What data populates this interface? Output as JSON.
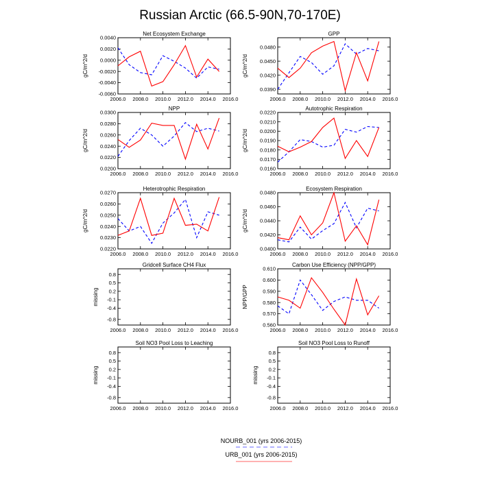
{
  "figure": {
    "title": "Russian Arctic (66.5-90N,70-170E)",
    "legend": [
      {
        "name": "NOURB_001 (yrs 2006-2015)",
        "color": "#0000ff",
        "dash": "dashed"
      },
      {
        "name": "URB_001 (yrs 2006-2015)",
        "color": "#ff0000",
        "dash": "solid"
      }
    ]
  },
  "chart_data": [
    {
      "type": "line",
      "title": "Net Ecosystem Exchange",
      "ylabel": "gC/m^2/d",
      "xlim": [
        2006,
        2016
      ],
      "ylim": [
        -0.006,
        0.004
      ],
      "xticks": [
        "2006.0",
        "2008.0",
        "2010.0",
        "2012.0",
        "2014.0",
        "2016.0"
      ],
      "yticks": [
        "-0.0060",
        "-0.0040",
        "-0.0020",
        "0.0000",
        "0.0020",
        "0.0040"
      ],
      "x": [
        2006,
        2007,
        2008,
        2009,
        2010,
        2011,
        2012,
        2013,
        2014,
        2015
      ],
      "series": [
        {
          "name": "NOURB_001",
          "values": [
            0.0022,
            -0.0008,
            -0.0022,
            -0.0026,
            0.0008,
            -0.0002,
            -0.0014,
            -0.0032,
            -0.0012,
            -0.0016
          ]
        },
        {
          "name": "URB_001",
          "values": [
            -0.001,
            0.0006,
            0.0016,
            -0.0046,
            -0.0038,
            -0.0008,
            0.0026,
            -0.003,
            0.0002,
            -0.002
          ]
        }
      ]
    },
    {
      "type": "line",
      "title": "GPP",
      "ylabel": "gC/m^2/d",
      "xlim": [
        2006,
        2016
      ],
      "ylim": [
        0.038,
        0.05
      ],
      "xticks": [
        "2006.0",
        "2008.0",
        "2010.0",
        "2012.0",
        "2014.0",
        "2016.0"
      ],
      "yticks": [
        "0.0390",
        "0.0420",
        "0.0450",
        "0.0480"
      ],
      "x": [
        2006,
        2007,
        2008,
        2009,
        2010,
        2011,
        2012,
        2013,
        2014,
        2015
      ],
      "series": [
        {
          "name": "NOURB_001",
          "values": [
            0.039,
            0.0425,
            0.046,
            0.0447,
            0.0422,
            0.044,
            0.0487,
            0.0465,
            0.0477,
            0.0472
          ]
        },
        {
          "name": "URB_001",
          "values": [
            0.0435,
            0.0415,
            0.0435,
            0.0468,
            0.0482,
            0.0492,
            0.0387,
            0.0468,
            0.0408,
            0.0492
          ]
        }
      ]
    },
    {
      "type": "line",
      "title": "NPP",
      "ylabel": "gC/m^2/d",
      "xlim": [
        2006,
        2016
      ],
      "ylim": [
        0.02,
        0.03
      ],
      "xticks": [
        "2006.0",
        "2008.0",
        "2010.0",
        "2012.0",
        "2014.0",
        "2016.0"
      ],
      "yticks": [
        "0.0200",
        "0.0220",
        "0.0240",
        "0.0260",
        "0.0280",
        "0.0300"
      ],
      "x": [
        2006,
        2007,
        2008,
        2009,
        2010,
        2011,
        2012,
        2013,
        2014,
        2015
      ],
      "series": [
        {
          "name": "NOURB_001",
          "values": [
            0.0222,
            0.025,
            0.0272,
            0.026,
            0.024,
            0.0258,
            0.0282,
            0.0266,
            0.0272,
            0.0267
          ]
        },
        {
          "name": "URB_001",
          "values": [
            0.0252,
            0.0238,
            0.0251,
            0.0281,
            0.0277,
            0.0277,
            0.0217,
            0.0279,
            0.0235,
            0.029
          ]
        }
      ]
    },
    {
      "type": "line",
      "title": "Autotrophic Respiration",
      "ylabel": "gC/m^2/d",
      "xlim": [
        2006,
        2016
      ],
      "ylim": [
        0.016,
        0.022
      ],
      "xticks": [
        "2006.0",
        "2008.0",
        "2010.0",
        "2012.0",
        "2014.0",
        "2016.0"
      ],
      "yticks": [
        "0.0160",
        "0.0170",
        "0.0180",
        "0.0190",
        "0.0200",
        "0.0210",
        "0.0220"
      ],
      "x": [
        2006,
        2007,
        2008,
        2009,
        2010,
        2011,
        2012,
        2013,
        2014,
        2015
      ],
      "series": [
        {
          "name": "NOURB_001",
          "values": [
            0.0167,
            0.0178,
            0.0191,
            0.0189,
            0.0183,
            0.0185,
            0.0202,
            0.0199,
            0.0205,
            0.0204
          ]
        },
        {
          "name": "URB_001",
          "values": [
            0.0184,
            0.0178,
            0.0183,
            0.0189,
            0.0204,
            0.0214,
            0.0171,
            0.019,
            0.0173,
            0.0204
          ]
        }
      ]
    },
    {
      "type": "line",
      "title": "Heterotrophic Respiration",
      "ylabel": "gC/m^2/d",
      "xlim": [
        2006,
        2016
      ],
      "ylim": [
        0.022,
        0.027
      ],
      "xticks": [
        "2006.0",
        "2008.0",
        "2010.0",
        "2012.0",
        "2014.0",
        "2016.0"
      ],
      "yticks": [
        "0.0220",
        "0.0230",
        "0.0240",
        "0.0250",
        "0.0260",
        "0.0270"
      ],
      "x": [
        2006,
        2007,
        2008,
        2009,
        2010,
        2011,
        2012,
        2013,
        2014,
        2015
      ],
      "series": [
        {
          "name": "NOURB_001",
          "values": [
            0.0247,
            0.0236,
            0.024,
            0.0225,
            0.0243,
            0.0252,
            0.0264,
            0.023,
            0.0253,
            0.025
          ]
        },
        {
          "name": "URB_001",
          "values": [
            0.0232,
            0.0236,
            0.0265,
            0.0232,
            0.0234,
            0.0265,
            0.0241,
            0.0242,
            0.0236,
            0.0266
          ]
        }
      ]
    },
    {
      "type": "line",
      "title": "Ecosystem Respiration",
      "ylabel": "gC/m^2/d",
      "xlim": [
        2006,
        2016
      ],
      "ylim": [
        0.04,
        0.048
      ],
      "xticks": [
        "2006.0",
        "2008.0",
        "2010.0",
        "2012.0",
        "2014.0",
        "2016.0"
      ],
      "yticks": [
        "0.0400",
        "0.0420",
        "0.0440",
        "0.0460",
        "0.0480"
      ],
      "x": [
        2006,
        2007,
        2008,
        2009,
        2010,
        2011,
        2012,
        2013,
        2014,
        2015
      ],
      "series": [
        {
          "name": "NOURB_001",
          "values": [
            0.0413,
            0.041,
            0.0431,
            0.0414,
            0.0426,
            0.0436,
            0.0466,
            0.043,
            0.0458,
            0.0454
          ]
        },
        {
          "name": "URB_001",
          "values": [
            0.0416,
            0.0413,
            0.0447,
            0.042,
            0.0437,
            0.048,
            0.0411,
            0.0433,
            0.0406,
            0.047
          ]
        }
      ]
    },
    {
      "type": "line",
      "title": "Gridcell Surface CH4 Flux",
      "ylabel": "missing",
      "xlim": [
        2006,
        2016
      ],
      "ylim": [
        -1,
        1
      ],
      "xticks": [
        "2006.0",
        "2008.0",
        "2010.0",
        "2012.0",
        "2014.0",
        "2016.0"
      ],
      "yticks": [
        "-0.8",
        "-0.4",
        "-0.1",
        "0.2",
        "0.5",
        "0.8"
      ],
      "x": [],
      "series": []
    },
    {
      "type": "line",
      "title": "Carbon Use Efficiency (NPP/GPP)",
      "ylabel": "NPP/GPP",
      "xlim": [
        2006,
        2016
      ],
      "ylim": [
        0.56,
        0.61
      ],
      "xticks": [
        "2006.0",
        "2008.0",
        "2010.0",
        "2012.0",
        "2014.0",
        "2016.0"
      ],
      "yticks": [
        "0.560",
        "0.570",
        "0.580",
        "0.590",
        "0.600",
        "0.610"
      ],
      "x": [
        2006,
        2007,
        2008,
        2009,
        2010,
        2011,
        2012,
        2013,
        2014,
        2015
      ],
      "series": [
        {
          "name": "NOURB_001",
          "values": [
            0.577,
            0.57,
            0.6,
            0.587,
            0.573,
            0.581,
            0.585,
            0.582,
            0.582,
            0.575
          ]
        },
        {
          "name": "URB_001",
          "values": [
            0.585,
            0.582,
            0.575,
            0.602,
            0.589,
            0.574,
            0.56,
            0.601,
            0.569,
            0.586
          ]
        }
      ]
    },
    {
      "type": "line",
      "title": "Soil NO3 Pool Loss to Leaching",
      "ylabel": "missing",
      "xlim": [
        2006,
        2016
      ],
      "ylim": [
        -1,
        1
      ],
      "xticks": [
        "2006.0",
        "2008.0",
        "2010.0",
        "2012.0",
        "2014.0",
        "2016.0"
      ],
      "yticks": [
        "-0.8",
        "-0.4",
        "-0.1",
        "0.2",
        "0.5",
        "0.8"
      ],
      "x": [],
      "series": []
    },
    {
      "type": "line",
      "title": "Soil NO3 Pool Loss to Runoff",
      "ylabel": "missing",
      "xlim": [
        2006,
        2016
      ],
      "ylim": [
        -1,
        1
      ],
      "xticks": [
        "2006.0",
        "2008.0",
        "2010.0",
        "2012.0",
        "2014.0",
        "2016.0"
      ],
      "yticks": [
        "-0.8",
        "-0.4",
        "-0.1",
        "0.2",
        "0.5",
        "0.8"
      ],
      "x": [],
      "series": []
    }
  ]
}
